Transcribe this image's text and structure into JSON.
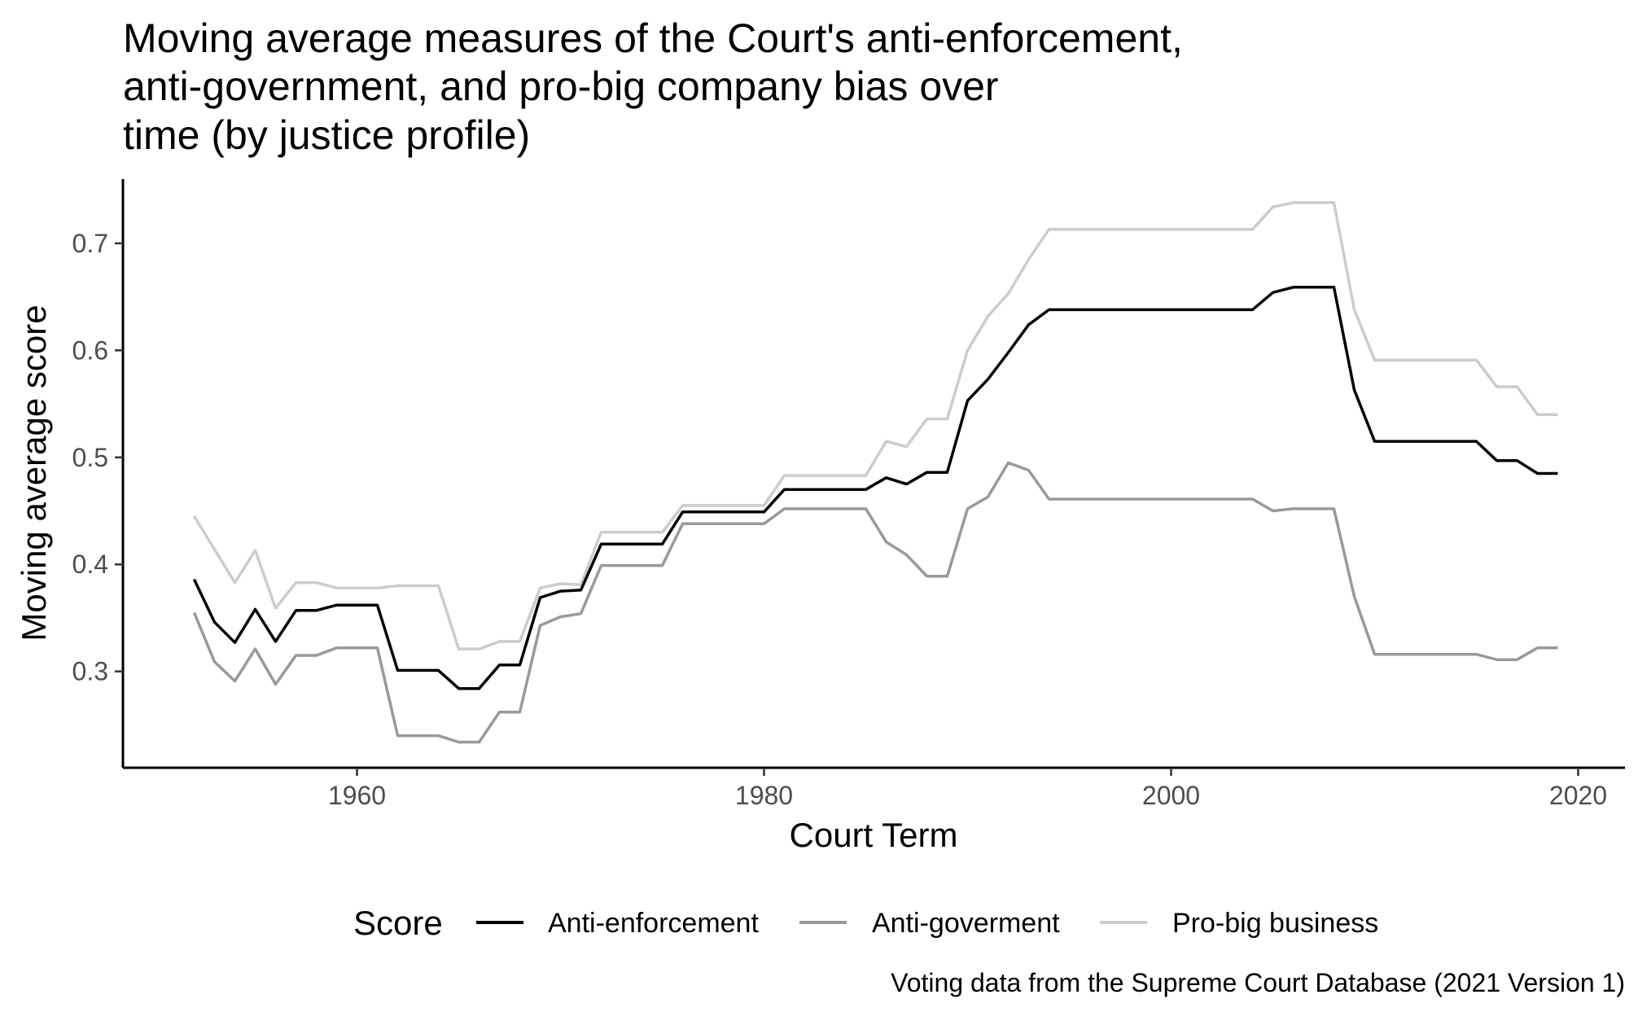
{
  "chart_data": {
    "type": "line",
    "title_lines": [
      "Moving average measures of the Court's anti-enforcement,",
      "anti-government, and pro-big company bias over",
      "time (by justice profile)"
    ],
    "xlabel": "Court Term",
    "ylabel": "Moving average score",
    "caption": "Voting data from the Supreme Court Database (2021 Version 1)",
    "legend_title": "Score",
    "legend_position": "bottom",
    "grid": false,
    "xlim": [
      1948.5,
      2022.3
    ],
    "ylim": [
      0.21,
      0.76
    ],
    "x_ticks": [
      1960,
      1980,
      2000,
      2020
    ],
    "y_ticks": [
      0.3,
      0.4,
      0.5,
      0.6,
      0.7
    ],
    "x_tick_labels": [
      "1960",
      "1980",
      "2000",
      "2020"
    ],
    "y_tick_labels": [
      "0.3",
      "0.4",
      "0.5",
      "0.6",
      "0.7"
    ],
    "x": [
      1952,
      1953,
      1954,
      1955,
      1956,
      1957,
      1958,
      1959,
      1960,
      1961,
      1962,
      1963,
      1964,
      1965,
      1966,
      1967,
      1968,
      1969,
      1970,
      1971,
      1972,
      1973,
      1974,
      1975,
      1976,
      1977,
      1978,
      1979,
      1980,
      1981,
      1982,
      1983,
      1984,
      1985,
      1986,
      1987,
      1988,
      1989,
      1990,
      1991,
      1992,
      1993,
      1994,
      1995,
      1996,
      1997,
      1998,
      1999,
      2000,
      2001,
      2002,
      2003,
      2004,
      2005,
      2006,
      2007,
      2008,
      2009,
      2010,
      2011,
      2012,
      2013,
      2014,
      2015,
      2016,
      2017,
      2018,
      2019
    ],
    "series": [
      {
        "name": "Anti-enforcement",
        "color": "#000000",
        "values": [
          0.386,
          0.346,
          0.327,
          0.358,
          0.328,
          0.357,
          0.357,
          0.362,
          0.362,
          0.362,
          0.301,
          0.301,
          0.301,
          0.284,
          0.284,
          0.306,
          0.306,
          0.369,
          0.375,
          0.376,
          0.419,
          0.419,
          0.419,
          0.419,
          0.449,
          0.449,
          0.449,
          0.449,
          0.449,
          0.47,
          0.47,
          0.47,
          0.47,
          0.47,
          0.481,
          0.475,
          0.486,
          0.486,
          0.553,
          0.573,
          0.598,
          0.624,
          0.638,
          0.638,
          0.638,
          0.638,
          0.638,
          0.638,
          0.638,
          0.638,
          0.638,
          0.638,
          0.638,
          0.654,
          0.659,
          0.659,
          0.659,
          0.563,
          0.515,
          0.515,
          0.515,
          0.515,
          0.515,
          0.515,
          0.497,
          0.497,
          0.485,
          0.485
        ]
      },
      {
        "name": "Anti-goverment",
        "color": "#999999",
        "values": [
          0.355,
          0.309,
          0.291,
          0.321,
          0.288,
          0.315,
          0.315,
          0.322,
          0.322,
          0.322,
          0.24,
          0.24,
          0.24,
          0.234,
          0.234,
          0.262,
          0.262,
          0.343,
          0.351,
          0.354,
          0.399,
          0.399,
          0.399,
          0.399,
          0.438,
          0.438,
          0.438,
          0.438,
          0.438,
          0.452,
          0.452,
          0.452,
          0.452,
          0.452,
          0.421,
          0.409,
          0.389,
          0.389,
          0.452,
          0.463,
          0.495,
          0.488,
          0.461,
          0.461,
          0.461,
          0.461,
          0.461,
          0.461,
          0.461,
          0.461,
          0.461,
          0.461,
          0.461,
          0.45,
          0.452,
          0.452,
          0.452,
          0.37,
          0.316,
          0.316,
          0.316,
          0.316,
          0.316,
          0.316,
          0.311,
          0.311,
          0.322,
          0.322
        ]
      },
      {
        "name": "Pro-big business",
        "color": "#cccccc",
        "values": [
          0.445,
          0.414,
          0.383,
          0.413,
          0.359,
          0.383,
          0.383,
          0.378,
          0.378,
          0.378,
          0.38,
          0.38,
          0.38,
          0.321,
          0.321,
          0.328,
          0.328,
          0.378,
          0.382,
          0.381,
          0.43,
          0.43,
          0.43,
          0.43,
          0.455,
          0.455,
          0.455,
          0.455,
          0.455,
          0.483,
          0.483,
          0.483,
          0.483,
          0.483,
          0.515,
          0.51,
          0.536,
          0.536,
          0.6,
          0.632,
          0.653,
          0.685,
          0.713,
          0.713,
          0.713,
          0.713,
          0.713,
          0.713,
          0.713,
          0.713,
          0.713,
          0.713,
          0.713,
          0.734,
          0.738,
          0.738,
          0.738,
          0.638,
          0.591,
          0.591,
          0.591,
          0.591,
          0.591,
          0.591,
          0.566,
          0.566,
          0.54,
          0.54
        ]
      }
    ]
  }
}
